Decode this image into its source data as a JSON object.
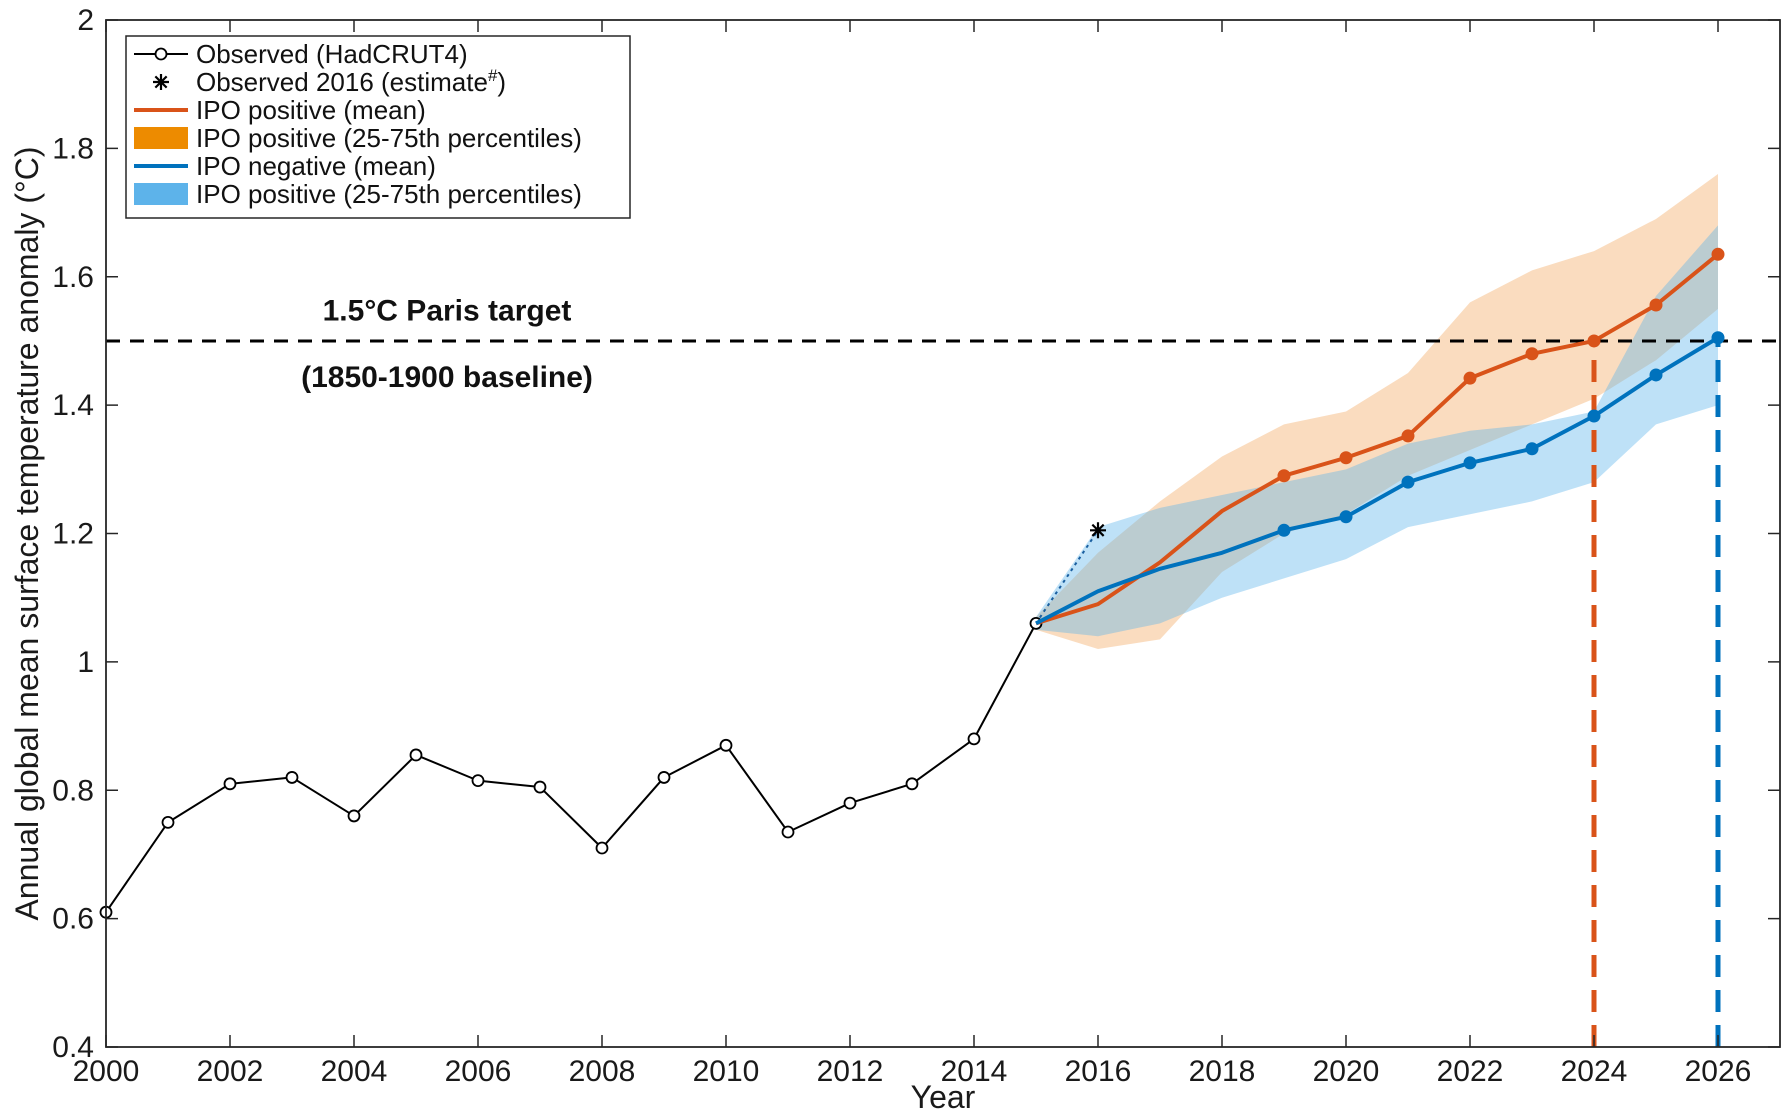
{
  "chart_data": {
    "type": "line",
    "xlabel": "Year",
    "ylabel": "Annual global mean surface temperature anomaly (°C)",
    "xlim": [
      2000,
      2027
    ],
    "ylim": [
      0.4,
      2.0
    ],
    "x_ticks": [
      "2000",
      "2002",
      "2004",
      "2006",
      "2008",
      "2010",
      "2012",
      "2014",
      "2016",
      "2018",
      "2020",
      "2022",
      "2024",
      "2026"
    ],
    "y_ticks": [
      "0.4",
      "0.6",
      "0.8",
      "1",
      "1.2",
      "1.4",
      "1.6",
      "1.8",
      "2"
    ],
    "grid": false,
    "legend_position": "top-left",
    "legend": [
      {
        "label": "Observed (HadCRUT4)",
        "kind": "line-marker",
        "color": "#000000"
      },
      {
        "label": "Observed 2016 (estimate",
        "sup": "#",
        "suffix": ")",
        "kind": "star",
        "color": "#000000"
      },
      {
        "label": "IPO positive (mean)",
        "kind": "line",
        "color": "#d95319"
      },
      {
        "label": "IPO positive (25-75th percentiles)",
        "kind": "patch",
        "color": "#ed8b00"
      },
      {
        "label": "IPO negative (mean)",
        "kind": "line",
        "color": "#0072bd"
      },
      {
        "label": "IPO positive (25-75th percentiles)",
        "kind": "patch",
        "color": "#5db3ea"
      }
    ],
    "series": [
      {
        "name": "Observed (HadCRUT4)",
        "color": "#000000",
        "x": [
          2000,
          2001,
          2002,
          2003,
          2004,
          2005,
          2006,
          2007,
          2008,
          2009,
          2010,
          2011,
          2012,
          2013,
          2014,
          2015
        ],
        "y": [
          0.61,
          0.75,
          0.81,
          0.82,
          0.76,
          0.855,
          0.815,
          0.805,
          0.71,
          0.82,
          0.87,
          0.735,
          0.78,
          0.81,
          0.88,
          1.06
        ]
      },
      {
        "name": "Observed 2016 (estimate#)",
        "color": "#000000",
        "x": [
          2016
        ],
        "y": [
          1.205
        ]
      },
      {
        "name": "IPO positive (mean)",
        "color": "#d95319",
        "x": [
          2015,
          2016,
          2017,
          2018,
          2019,
          2020,
          2021,
          2022,
          2023,
          2024,
          2025,
          2026
        ],
        "y": [
          1.06,
          1.09,
          1.155,
          1.235,
          1.29,
          1.318,
          1.352,
          1.442,
          1.48,
          1.5,
          1.556,
          1.635
        ],
        "markers_from": 2019
      },
      {
        "name": "IPO negative (mean)",
        "color": "#0072bd",
        "x": [
          2015,
          2016,
          2017,
          2018,
          2019,
          2020,
          2021,
          2022,
          2023,
          2024,
          2025,
          2026
        ],
        "y": [
          1.06,
          1.11,
          1.145,
          1.17,
          1.205,
          1.226,
          1.28,
          1.31,
          1.332,
          1.383,
          1.447,
          1.505
        ],
        "markers_from": 2019
      }
    ],
    "bands": [
      {
        "name": "IPO positive (25-75th percentiles)",
        "color": "#f5c08a",
        "opacity": 0.55,
        "x": [
          2015,
          2016,
          2017,
          2018,
          2019,
          2020,
          2021,
          2022,
          2023,
          2024,
          2025,
          2026
        ],
        "lower": [
          1.05,
          1.02,
          1.035,
          1.14,
          1.2,
          1.23,
          1.29,
          1.33,
          1.37,
          1.41,
          1.47,
          1.55
        ],
        "upper": [
          1.07,
          1.17,
          1.25,
          1.32,
          1.37,
          1.39,
          1.45,
          1.56,
          1.61,
          1.64,
          1.69,
          1.76
        ]
      },
      {
        "name": "IPO positive (25-75th percentiles)",
        "color": "#5db3ea",
        "opacity": 0.4,
        "x": [
          2015,
          2016,
          2017,
          2018,
          2019,
          2020,
          2021,
          2022,
          2023,
          2024,
          2025,
          2026
        ],
        "lower": [
          1.05,
          1.04,
          1.06,
          1.1,
          1.13,
          1.16,
          1.21,
          1.23,
          1.25,
          1.28,
          1.37,
          1.4
        ],
        "upper": [
          1.07,
          1.21,
          1.24,
          1.26,
          1.28,
          1.3,
          1.34,
          1.36,
          1.37,
          1.39,
          1.57,
          1.68
        ]
      }
    ],
    "annotations": [
      {
        "text": "1.5°C Paris target",
        "x": 2005.5,
        "y": 1.505,
        "anchor": "above"
      },
      {
        "text": "(1850-1900 baseline)",
        "x": 2005.5,
        "y": 1.495,
        "anchor": "below"
      }
    ],
    "reference_lines": [
      {
        "orientation": "horizontal",
        "value": 1.5,
        "color": "#000000",
        "style": "dashed"
      },
      {
        "orientation": "vertical",
        "value": 2024,
        "color": "#d95319",
        "style": "dashed",
        "to": 1.5
      },
      {
        "orientation": "vertical",
        "value": 2026,
        "color": "#0072bd",
        "style": "dashed",
        "to": 1.5
      }
    ],
    "connector": {
      "from": [
        2015,
        1.06
      ],
      "to": [
        2016,
        1.205
      ],
      "color": "#1a5fa0",
      "style": "dotted"
    }
  }
}
